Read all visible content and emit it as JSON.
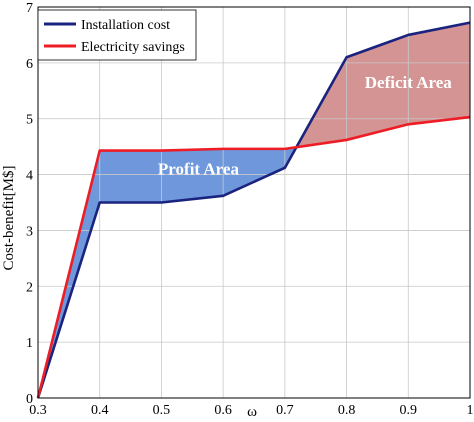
{
  "chart_data": {
    "type": "line",
    "xlabel": "ω",
    "ylabel": "Cost-benefit[M$]",
    "xlim": [
      0.3,
      1.0
    ],
    "ylim": [
      0,
      7
    ],
    "grid": true,
    "legend_position": "top-left",
    "x_ticks": [
      "0.3",
      "0.4",
      "0.5",
      "0.6",
      "0.7",
      "0.8",
      "0.9",
      "1"
    ],
    "y_ticks": [
      "0",
      "1",
      "2",
      "3",
      "4",
      "5",
      "6",
      "7"
    ],
    "x": [
      0.3,
      0.4,
      0.5,
      0.6,
      0.7,
      0.8,
      0.9,
      1.0
    ],
    "series": [
      {
        "name": "Installation cost",
        "color": "#1a237e",
        "values": [
          0.0,
          3.5,
          3.5,
          3.62,
          4.12,
          6.1,
          6.5,
          6.72
        ]
      },
      {
        "name": "Electricity savings",
        "color": "#ee1c25",
        "values": [
          0.0,
          4.43,
          4.43,
          4.46,
          4.46,
          4.62,
          4.9,
          5.03
        ]
      }
    ],
    "annotations": [
      {
        "text": "Profit Area",
        "x": 0.56,
        "y": 4.0,
        "fill": "#6f98dc"
      },
      {
        "text": "Deficit Area",
        "x": 0.9,
        "y": 5.55,
        "fill": "#d49494"
      }
    ]
  }
}
